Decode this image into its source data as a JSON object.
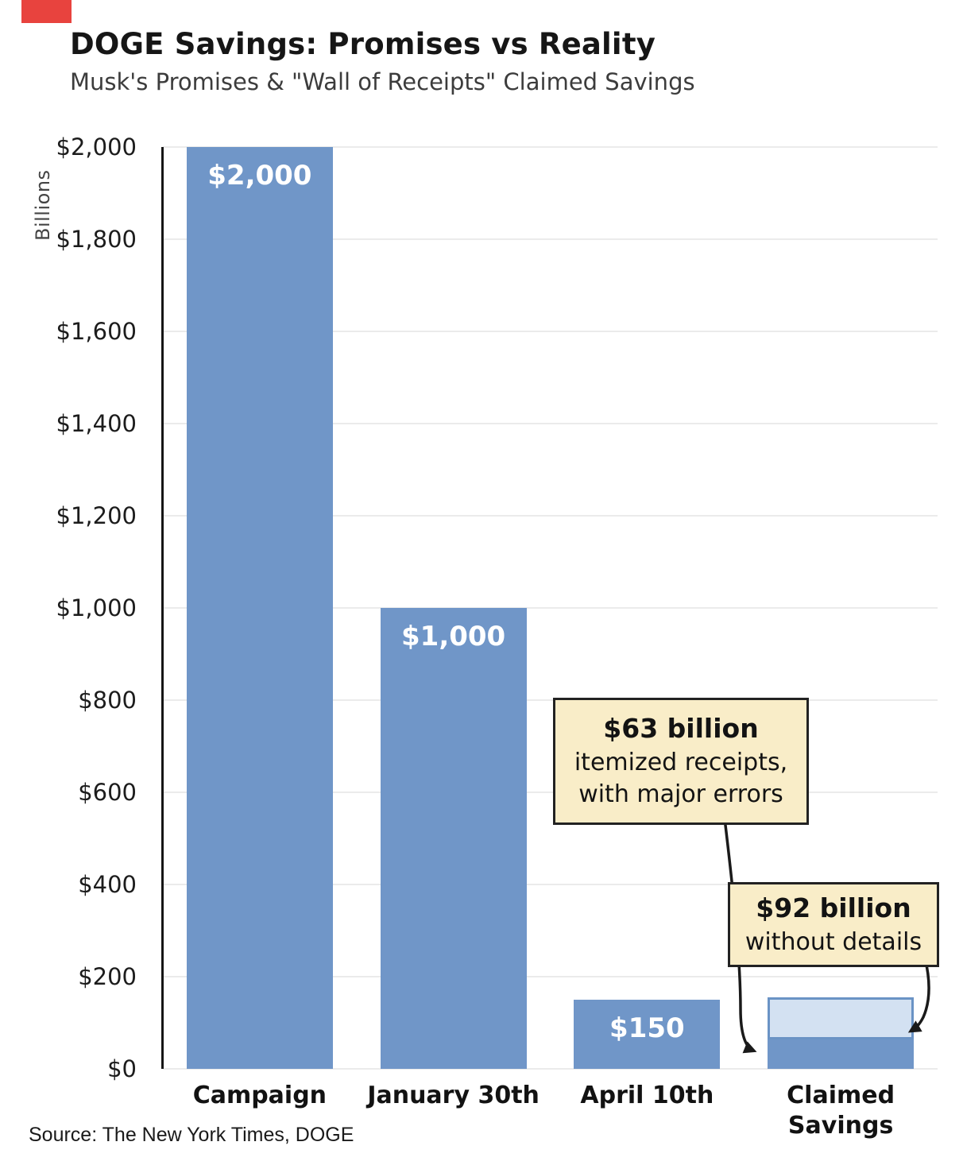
{
  "header": {
    "title": "DOGE Savings: Promises vs Reality",
    "subtitle": "Musk's Promises & \"Wall of Receipts\" Claimed Savings"
  },
  "footer": {
    "source": "Source: The New York Times, DOGE"
  },
  "chart_data": {
    "type": "bar",
    "stacked": true,
    "title": "DOGE Savings: Promises vs Reality",
    "subtitle": "Musk's Promises & \"Wall of Receipts\" Claimed Savings",
    "xlabel": "",
    "ylabel": "Billions",
    "ylim": [
      0,
      2000
    ],
    "grid": "horizontal",
    "legend": "none",
    "categories": [
      "Campaign",
      "January 30th",
      "April 10th",
      "Claimed Savings"
    ],
    "series": [
      {
        "name": "Itemized receipts (solid)",
        "color": "#7096c8",
        "values": [
          2000,
          1000,
          150,
          63
        ]
      },
      {
        "name": "Without details (outlined)",
        "color": "#d3e1f2",
        "values": [
          0,
          0,
          0,
          92
        ]
      }
    ],
    "bar_value_labels": [
      "$2,000",
      "$1,000",
      "$150",
      ""
    ],
    "yticks": [
      {
        "value": 0,
        "label": "$0"
      },
      {
        "value": 200,
        "label": "$200"
      },
      {
        "value": 400,
        "label": "$400"
      },
      {
        "value": 600,
        "label": "$600"
      },
      {
        "value": 800,
        "label": "$800"
      },
      {
        "value": 1000,
        "label": "$1,000"
      },
      {
        "value": 1200,
        "label": "$1,200"
      },
      {
        "value": 1400,
        "label": "$1,400"
      },
      {
        "value": 1600,
        "label": "$1,600"
      },
      {
        "value": 1800,
        "label": "$1,800"
      },
      {
        "value": 2000,
        "label": "$2,000"
      }
    ],
    "annotations": [
      {
        "heading": "$63 billion",
        "lines": [
          "itemized receipts,",
          "with major errors"
        ]
      },
      {
        "heading": "$92 billion",
        "lines": [
          "without details"
        ]
      }
    ],
    "colors": {
      "bar": "#7096c8",
      "bar_light_fill": "#d3e1f2",
      "bar_light_border": "#6a93c5",
      "annotation_bg": "#f9edc8",
      "corner_mark": "#e8433e"
    }
  }
}
